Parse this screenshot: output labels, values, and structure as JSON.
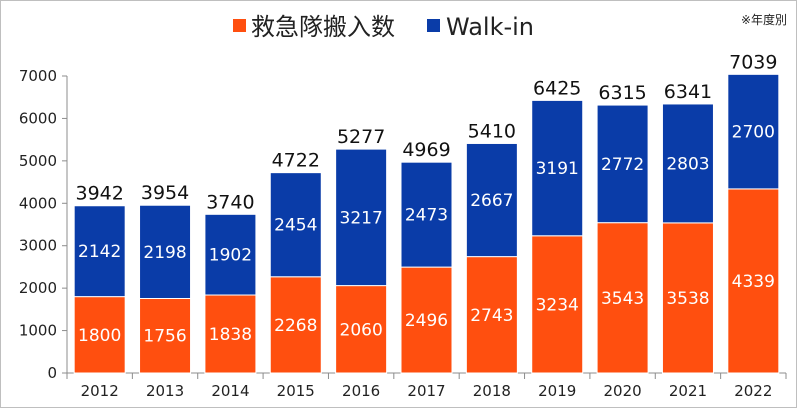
{
  "chart_data": {
    "type": "bar",
    "stacked": true,
    "note": "※年度別",
    "categories": [
      "2012",
      "2013",
      "2014",
      "2015",
      "2016",
      "2017",
      "2018",
      "2019",
      "2020",
      "2021",
      "2022"
    ],
    "series": [
      {
        "name": "救急隊搬入数",
        "color": "#ff4f0f",
        "values": [
          1800,
          1756,
          1838,
          2268,
          2060,
          2496,
          2743,
          3234,
          3543,
          3538,
          4339
        ]
      },
      {
        "name": "Walk-in",
        "color": "#0a3ca8",
        "values": [
          2142,
          2198,
          1902,
          2454,
          3217,
          2473,
          2667,
          3191,
          2772,
          2803,
          2700
        ]
      }
    ],
    "totals": [
      3942,
      3954,
      3740,
      4722,
      5277,
      4969,
      5410,
      6425,
      6315,
      6341,
      7039
    ],
    "ylim": [
      0,
      7000
    ],
    "yticks": [
      0,
      1000,
      2000,
      3000,
      4000,
      5000,
      6000,
      7000
    ],
    "legend_position": "top-center",
    "grid": false
  }
}
